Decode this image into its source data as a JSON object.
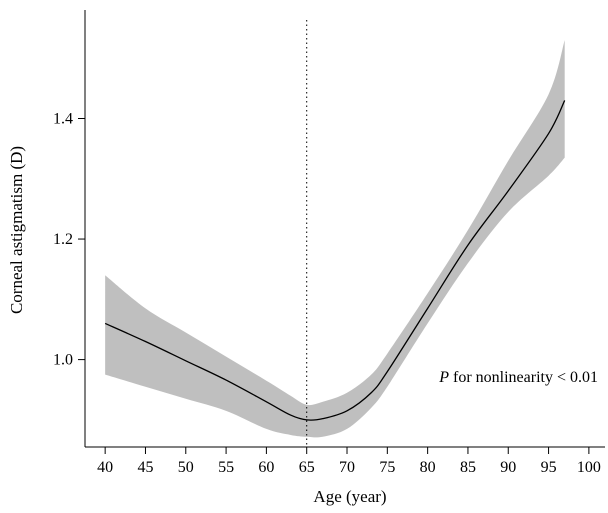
{
  "chart_data": {
    "type": "line",
    "xlabel": "Age (year)",
    "ylabel": "Corneal astigmatism (D)",
    "xlim": [
      37.5,
      102
    ],
    "ylim": [
      0.855,
      1.58
    ],
    "x_ticks": [
      40,
      45,
      50,
      55,
      60,
      65,
      70,
      75,
      80,
      85,
      90,
      95,
      100
    ],
    "y_ticks": [
      1.0,
      1.2,
      1.4
    ],
    "y_tick_labels": [
      "1.0",
      "1.2",
      "1.4"
    ],
    "reference_line_x": 65,
    "annotation": {
      "italic": "P",
      "text": " for nonlinearity < 0.01"
    },
    "colors": {
      "band": "#bfbfbf",
      "line": "#000000"
    },
    "series": [
      {
        "x": [
          40,
          45,
          50,
          55,
          60,
          63,
          65,
          67,
          70,
          73,
          75,
          80,
          85,
          90,
          95,
          97
        ],
        "y": [
          1.06,
          1.03,
          0.998,
          0.966,
          0.93,
          0.908,
          0.9,
          0.902,
          0.915,
          0.945,
          0.98,
          1.085,
          1.19,
          1.28,
          1.375,
          1.43
        ],
        "lower": [
          0.975,
          0.955,
          0.935,
          0.915,
          0.885,
          0.875,
          0.872,
          0.872,
          0.885,
          0.92,
          0.955,
          1.06,
          1.16,
          1.245,
          1.305,
          1.335
        ],
        "upper": [
          1.14,
          1.085,
          1.045,
          1.005,
          0.965,
          0.94,
          0.925,
          0.93,
          0.945,
          0.975,
          1.01,
          1.11,
          1.215,
          1.33,
          1.44,
          1.53
        ]
      }
    ]
  }
}
